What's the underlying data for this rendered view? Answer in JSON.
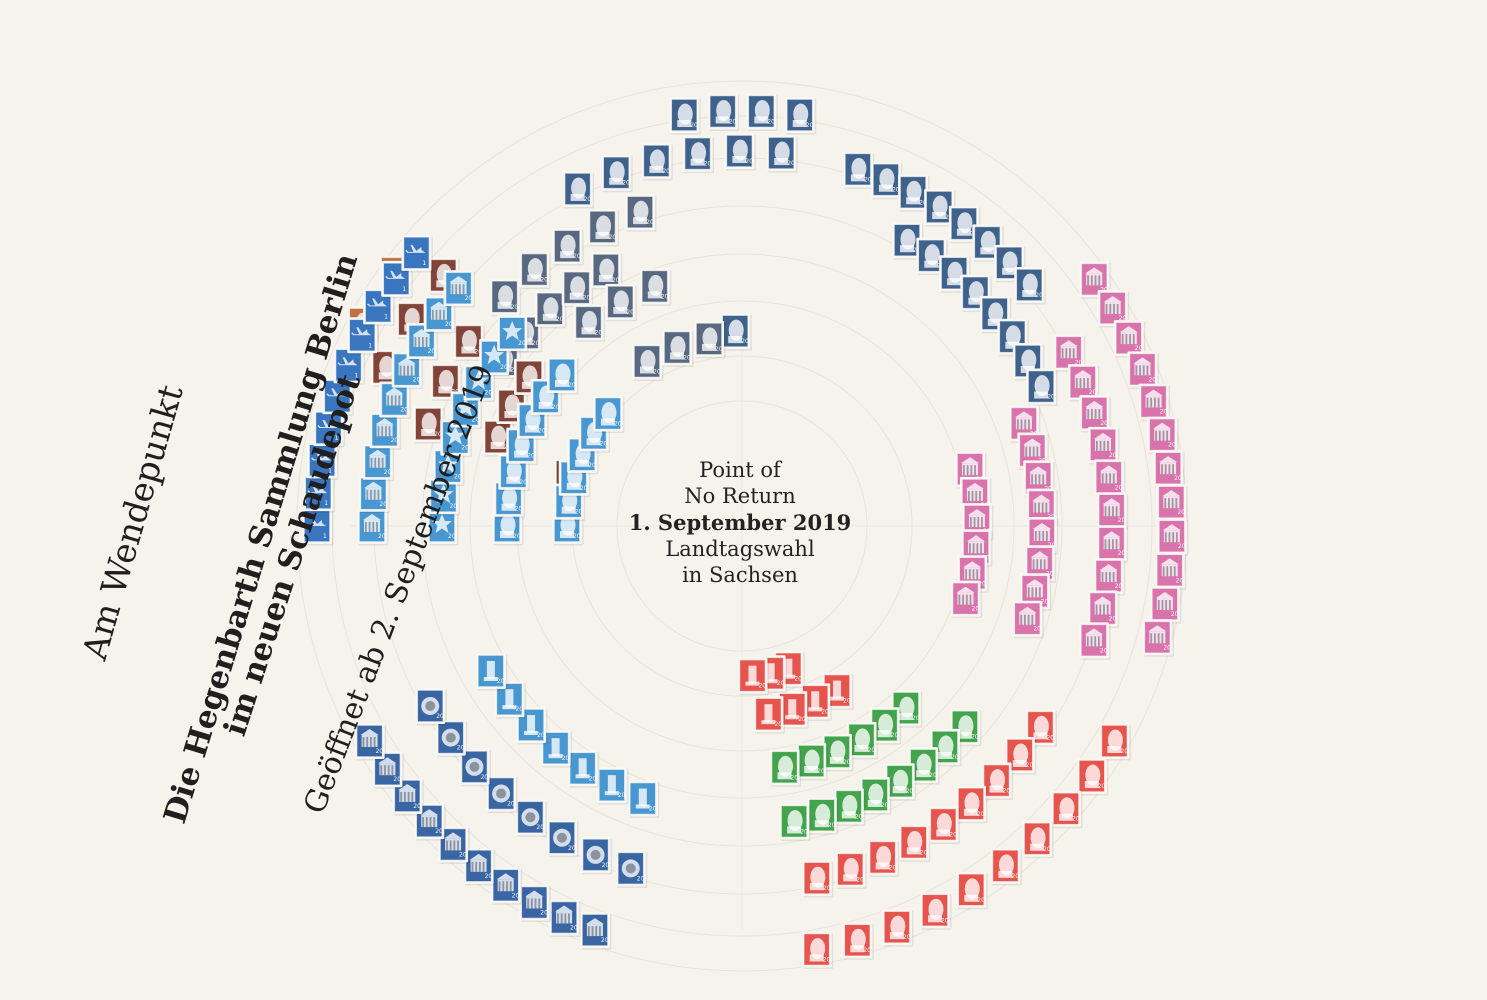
{
  "headline": {
    "line1": "Am Wendepunkt",
    "line2": "Die Hegenbarth Sammlung Berlin",
    "line3": "im neuen Schaudepot",
    "line4": "Geöffnet ab 2. September 2019"
  },
  "center_label": {
    "line1": "Point of",
    "line2": "No Return",
    "line3": "1. September 2019",
    "line4": "Landtagswahl",
    "line5": "in Sachsen"
  },
  "colors": {
    "background": "#f6f2ec",
    "text": "#1f1f1f",
    "navy": "#355a86",
    "slate": "#4e6079",
    "brown": "#7b3a2d",
    "orange": "#bb6b33",
    "sky_blue": "#3f91cf",
    "royal_blue": "#2f6ebc",
    "pink": "#d66ba7",
    "red": "#e54b45",
    "green": "#3a9e43",
    "dark_blue": "#2e5e9e"
  }
}
